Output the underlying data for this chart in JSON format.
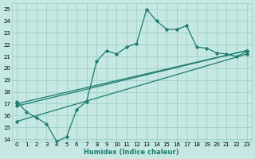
{
  "xlabel": "Humidex (Indice chaleur)",
  "xlim": [
    -0.5,
    23.5
  ],
  "ylim": [
    13.8,
    25.5
  ],
  "yticks": [
    14,
    15,
    16,
    17,
    18,
    19,
    20,
    21,
    22,
    23,
    24,
    25
  ],
  "xticks": [
    0,
    1,
    2,
    3,
    4,
    5,
    6,
    7,
    8,
    9,
    10,
    11,
    12,
    13,
    14,
    15,
    16,
    17,
    18,
    19,
    20,
    21,
    22,
    23
  ],
  "bg_color": "#c5e8e2",
  "grid_color": "#9dcfca",
  "line_color": "#1e7b70",
  "line1_x": [
    0,
    1,
    2,
    3,
    4,
    5,
    6,
    7,
    8,
    9,
    10,
    11,
    12,
    13,
    14,
    15,
    16,
    17,
    18,
    19,
    20,
    21,
    22,
    23
  ],
  "line1_y": [
    17.2,
    16.3,
    15.8,
    15.3,
    13.8,
    14.2,
    16.5,
    17.2,
    20.6,
    21.5,
    21.2,
    21.8,
    22.1,
    25.0,
    24.0,
    23.3,
    23.3,
    23.6,
    21.8,
    21.7,
    21.3,
    21.2,
    21.0,
    21.4
  ],
  "line2_x": [
    0,
    23
  ],
  "line2_y": [
    16.8,
    21.5
  ],
  "line3_x": [
    0,
    23
  ],
  "line3_y": [
    15.5,
    21.2
  ],
  "line4_x": [
    0,
    23
  ],
  "line4_y": [
    17.0,
    21.5
  ],
  "xlabel_fontsize": 6.0,
  "tick_fontsize": 5.0
}
